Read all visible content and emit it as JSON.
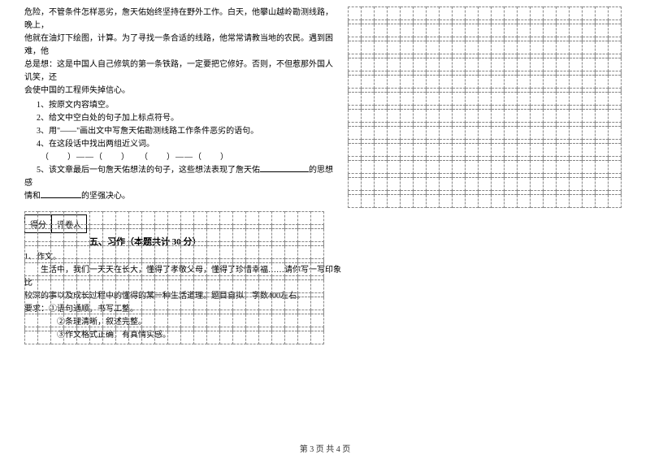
{
  "passage": {
    "line1": "危险，不管条件怎样恶劣，詹天佑始终坚持在野外工作。白天，他攀山越岭勘测线路，晚上，",
    "line2": "他就在油灯下绘图，计算。为了寻找一条合适的线路，他常常请教当地的农民。遇到困难，他",
    "line3": "总是想：这是中国人自己修筑的第一条铁路，一定要把它修好。否则，不但惹那外国人讥笑，还",
    "line4": "会使中国的工程师失掉信心。"
  },
  "questions": {
    "q1": "1、按原文内容填空。",
    "q2": "2、给文中空白处的句子加上标点符号。",
    "q3": "3、用\"——\"画出文中写詹天佑勘测线路工作条件恶劣的语句。",
    "q4": "4、在这段话中找出两组近义词。",
    "blanks": "（　　）——（　　）　　（　　）——（　　）",
    "q5a": "5、该文章最后一句詹天佑想法的句子，这些想法表现了詹天佑",
    "q5b": "的思想感",
    "q5c": "情和",
    "q5d": "的坚强决心。"
  },
  "score": {
    "label1": "得分",
    "label2": "评卷人"
  },
  "section": {
    "title": "五、习作（本题共计 30 分）"
  },
  "composition": {
    "line1": "1、作文。",
    "line2": "生活中，我们一天天在长大，懂得了孝敬父母，懂得了珍惜幸福……请你写一写印象比",
    "line3": "较深的事以及成长过程中的懂得的某一种生活道理。题目自拟，字数400左右。",
    "line4": "要求：①语句通顺，书写工整。",
    "line5": "②条理清晰，叙述完整。",
    "line6": "③作文格式正确，有真情实感。"
  },
  "footer": "第 3 页 共 4 页",
  "grid": {
    "right_cols": 21,
    "right_rows": 12,
    "bottom_cols": 23,
    "bottom_rows": 8,
    "cell_size": 16,
    "border_color": "#888888"
  }
}
